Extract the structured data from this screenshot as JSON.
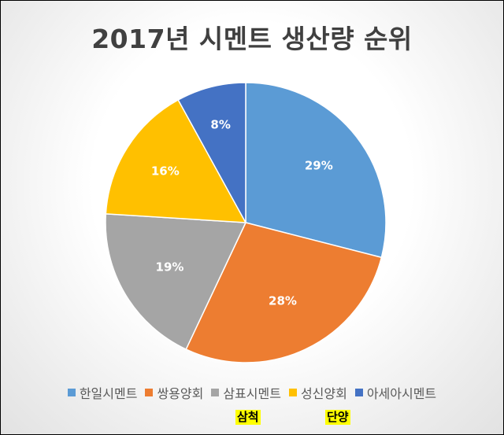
{
  "chart_data": {
    "type": "pie",
    "title": "2017년 시멘트 생산량 순위",
    "categories": [
      "한일시멘트",
      "쌍용양회",
      "삼표시멘트",
      "성신양회",
      "아세아시멘트"
    ],
    "values": [
      29,
      28,
      19,
      16,
      8
    ],
    "labels": [
      "29%",
      "28%",
      "19%",
      "16%",
      "8%"
    ],
    "colors": [
      "#5B9BD5",
      "#ED7D31",
      "#A5A5A5",
      "#FFC000",
      "#4472C4"
    ],
    "legend_position": "bottom"
  },
  "annotations": [
    "삼척",
    "단양"
  ]
}
